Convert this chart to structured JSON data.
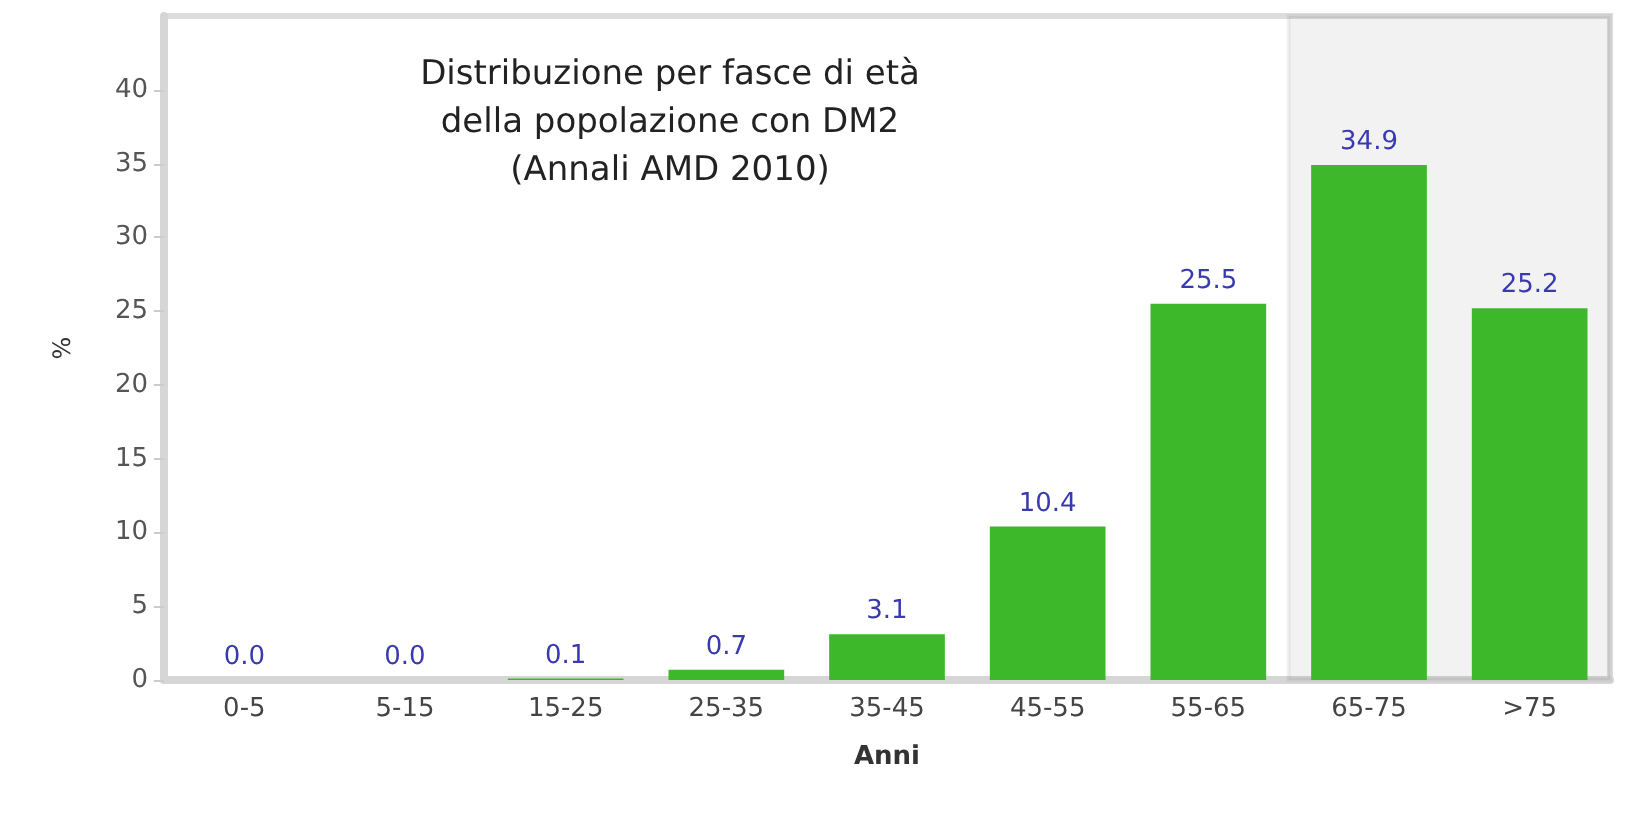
{
  "chart_data": {
    "type": "bar",
    "title": "Distribuzione per fasce di età\ndella popolazione con DM2\n(Annali AMD 2010)",
    "xlabel": "Anni",
    "ylabel": "%",
    "categories": [
      "0-5",
      "5-15",
      "15-25",
      "25-35",
      "35-45",
      "45-55",
      "55-65",
      "65-75",
      ">75"
    ],
    "values": [
      0.0,
      0.0,
      0.1,
      0.7,
      3.1,
      10.4,
      25.5,
      34.9,
      25.2
    ],
    "value_labels": [
      "0.0",
      "0.0",
      "0.1",
      "0.7",
      "3.1",
      "10.4",
      "25.5",
      "34.9",
      "25.2"
    ],
    "color": "#3cb82a",
    "ylim": [
      0,
      45
    ],
    "yticks": [
      0,
      5,
      10,
      15,
      20,
      25,
      30,
      35,
      40
    ],
    "grid": false,
    "bands": [
      {
        "axis": "x",
        "from": "65-75",
        "to": ">75",
        "color": "#222222"
      }
    ]
  }
}
